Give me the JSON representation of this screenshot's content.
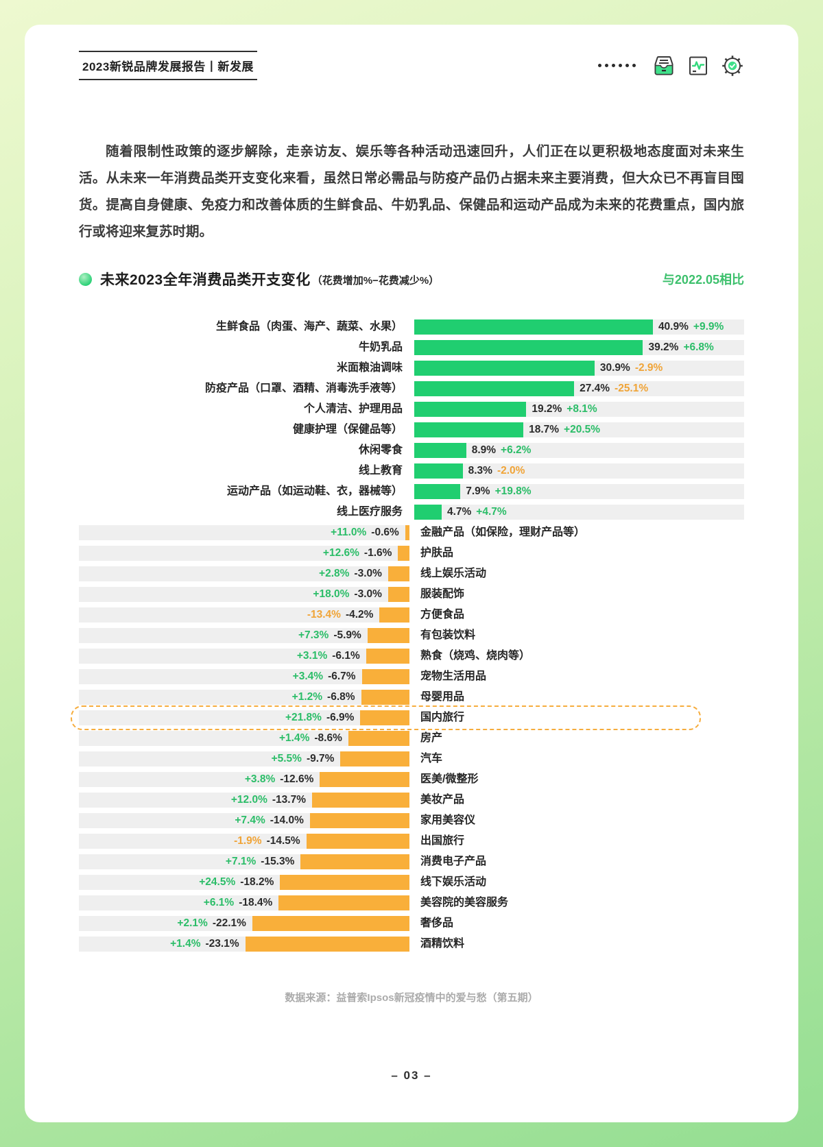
{
  "header": {
    "title": "2023新锐品牌发展报告丨新发展",
    "icons": [
      "dots-indicator",
      "archive-tray-icon",
      "report-chart-icon",
      "settings-gear-icon"
    ]
  },
  "intro": {
    "text": "随着限制性政策的逐步解除，走亲访友、娱乐等各种活动迅速回升，人们正在以更积极地态度面对未来生活。从未来一年消费品类开支变化来看，虽然日常必需品与防疫产品仍占据未来主要消费，但大众已不再盲目囤货。提高自身健康、免疫力和改善体质的生鲜食品、牛奶乳品、保健品和运动产品成为未来的花费重点，国内旅行或将迎来复苏时期。"
  },
  "chart_data": {
    "type": "bar",
    "orientation": "horizontal-diverging",
    "title": "未来2023全年消费品类开支变化",
    "subtitle": "（花费增加%−花费减少%）",
    "note": "与2022.05相比",
    "unit": "%",
    "rows": [
      {
        "label": "生鲜食品（肉蛋、海产、蔬菜、水果）",
        "net": 40.9,
        "net_label": "40.9%",
        "change": 9.9,
        "change_label": "+9.9%"
      },
      {
        "label": "牛奶乳品",
        "net": 39.2,
        "net_label": "39.2%",
        "change": 6.8,
        "change_label": "+6.8%"
      },
      {
        "label": "米面粮油调味",
        "net": 30.9,
        "net_label": "30.9%",
        "change": -2.9,
        "change_label": "-2.9%"
      },
      {
        "label": "防疫产品（口罩、酒精、消毒洗手液等）",
        "net": 27.4,
        "net_label": "27.4%",
        "change": -25.1,
        "change_label": "-25.1%"
      },
      {
        "label": "个人清洁、护理用品",
        "net": 19.2,
        "net_label": "19.2%",
        "change": 8.1,
        "change_label": "+8.1%"
      },
      {
        "label": "健康护理（保健品等）",
        "net": 18.7,
        "net_label": "18.7%",
        "change": 20.5,
        "change_label": "+20.5%"
      },
      {
        "label": "休闲零食",
        "net": 8.9,
        "net_label": "8.9%",
        "change": 6.2,
        "change_label": "+6.2%"
      },
      {
        "label": "线上教育",
        "net": 8.3,
        "net_label": "8.3%",
        "change": -2.0,
        "change_label": "-2.0%"
      },
      {
        "label": "运动产品（如运动鞋、衣，器械等）",
        "net": 7.9,
        "net_label": "7.9%",
        "change": 19.8,
        "change_label": "+19.8%"
      },
      {
        "label": "线上医疗服务",
        "net": 4.7,
        "net_label": "4.7%",
        "change": 4.7,
        "change_label": "+4.7%"
      },
      {
        "label": "金融产品（如保险，理财产品等）",
        "net": -0.6,
        "net_label": "-0.6%",
        "change": 11.0,
        "change_label": "+11.0%"
      },
      {
        "label": "护肤品",
        "net": -1.6,
        "net_label": "-1.6%",
        "change": 12.6,
        "change_label": "+12.6%"
      },
      {
        "label": "线上娱乐活动",
        "net": -3.0,
        "net_label": "-3.0%",
        "change": 2.8,
        "change_label": "+2.8%"
      },
      {
        "label": "服装配饰",
        "net": -3.0,
        "net_label": "-3.0%",
        "change": 18.0,
        "change_label": "+18.0%"
      },
      {
        "label": "方便食品",
        "net": -4.2,
        "net_label": "-4.2%",
        "change": -13.4,
        "change_label": "-13.4%"
      },
      {
        "label": "有包装饮料",
        "net": -5.9,
        "net_label": "-5.9%",
        "change": 7.3,
        "change_label": "+7.3%"
      },
      {
        "label": "熟食（烧鸡、烧肉等）",
        "net": -6.1,
        "net_label": "-6.1%",
        "change": 3.1,
        "change_label": "+3.1%"
      },
      {
        "label": "宠物生活用品",
        "net": -6.7,
        "net_label": "-6.7%",
        "change": 3.4,
        "change_label": "+3.4%"
      },
      {
        "label": "母婴用品",
        "net": -6.8,
        "net_label": "-6.8%",
        "change": 1.2,
        "change_label": "+1.2%"
      },
      {
        "label": "国内旅行",
        "net": -6.9,
        "net_label": "-6.9%",
        "change": 21.8,
        "change_label": "+21.8%",
        "highlight": true
      },
      {
        "label": "房产",
        "net": -8.6,
        "net_label": "-8.6%",
        "change": 1.4,
        "change_label": "+1.4%"
      },
      {
        "label": "汽车",
        "net": -9.7,
        "net_label": "-9.7%",
        "change": 5.5,
        "change_label": "+5.5%"
      },
      {
        "label": "医美/微整形",
        "net": -12.6,
        "net_label": "-12.6%",
        "change": 3.8,
        "change_label": "+3.8%"
      },
      {
        "label": "美妆产品",
        "net": -13.7,
        "net_label": "-13.7%",
        "change": 12.0,
        "change_label": "+12.0%"
      },
      {
        "label": "家用美容仪",
        "net": -14.0,
        "net_label": "-14.0%",
        "change": 7.4,
        "change_label": "+7.4%"
      },
      {
        "label": "出国旅行",
        "net": -14.5,
        "net_label": "-14.5%",
        "change": -1.9,
        "change_label": "-1.9%"
      },
      {
        "label": "消费电子产品",
        "net": -15.3,
        "net_label": "-15.3%",
        "change": 7.1,
        "change_label": "+7.1%"
      },
      {
        "label": "线下娱乐活动",
        "net": -18.2,
        "net_label": "-18.2%",
        "change": 24.5,
        "change_label": "+24.5%"
      },
      {
        "label": "美容院的美容服务",
        "net": -18.4,
        "net_label": "-18.4%",
        "change": 6.1,
        "change_label": "+6.1%"
      },
      {
        "label": "奢侈品",
        "net": -22.1,
        "net_label": "-22.1%",
        "change": 2.1,
        "change_label": "+2.1%"
      },
      {
        "label": "酒精饮料",
        "net": -23.1,
        "net_label": "-23.1%",
        "change": 1.4,
        "change_label": "+1.4%"
      }
    ],
    "legend_position": "none",
    "grid": false
  },
  "footer": {
    "source": "数据来源：益普索Ipsos新冠疫情中的爱与愁（第五期）",
    "page": "– 03 –"
  },
  "colors": {
    "green_bar": "#20CE70",
    "green_text": "#2BBD68",
    "orange_bar": "#F9AF3A",
    "orange_text": "#F0A437",
    "net_text": "#2B2B2B",
    "track_gray": "#EFEFEF",
    "compare_green": "#3CC06C",
    "frame_top": "#EEF9D0",
    "frame_bottom": "#94DE92"
  }
}
